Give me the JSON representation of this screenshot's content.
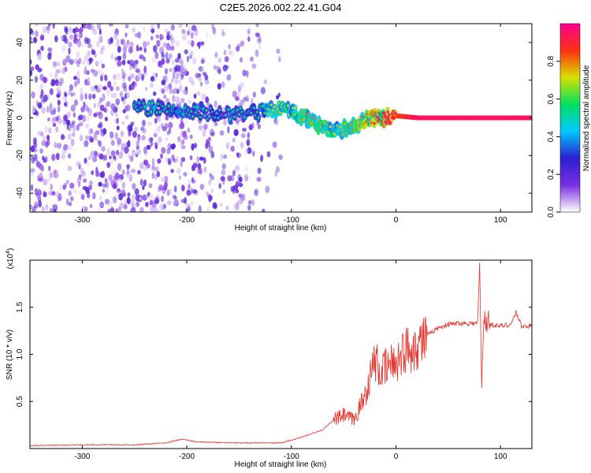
{
  "title": "C2E5.2026.002.22.41.G04",
  "chart_data": [
    {
      "type": "heatmap",
      "xlabel": "Height of straight line (km)",
      "ylabel": "Frequency (Hz)",
      "colorbar_label": "Normalized spectral amplitude",
      "xlim": [
        -350,
        130
      ],
      "ylim": [
        -50,
        50
      ],
      "x_ticks": [
        -300,
        -200,
        -100,
        0,
        100
      ],
      "x_tick_labels": [
        "-300",
        "-200",
        "-100",
        "0",
        "100"
      ],
      "y_ticks": [
        -40,
        -20,
        0,
        20,
        40
      ],
      "y_tick_labels": [
        "-40",
        "-20",
        "0",
        "20",
        "40"
      ],
      "colorbar_range": [
        0,
        1
      ],
      "colorbar_ticks": [
        0.0,
        0.2,
        0.4,
        0.6,
        0.8
      ],
      "colorbar_tick_labels": [
        "0.0",
        "0.2",
        "0.4",
        "0.6",
        "0.8"
      ],
      "colormap": [
        "#ffffff",
        "#7a2fe0",
        "#2a1fd0",
        "#00c8ff",
        "#00e060",
        "#d8e000",
        "#ff3010",
        "#ff0090"
      ],
      "centroid_track": {
        "x": [
          -250,
          -230,
          -210,
          -190,
          -170,
          -150,
          -130,
          -115,
          -100,
          -90,
          -80,
          -70,
          -60,
          -50,
          -40,
          -30,
          -20,
          -10,
          0,
          20,
          60,
          100,
          130
        ],
        "y": [
          5,
          5,
          4,
          3,
          2,
          2,
          3,
          5,
          4,
          1,
          -2,
          -5,
          -7,
          -6,
          -4,
          -1,
          0,
          0,
          1,
          0,
          0,
          0,
          0
        ],
        "amplitude": [
          0.3,
          0.35,
          0.3,
          0.3,
          0.25,
          0.3,
          0.3,
          0.5,
          0.45,
          0.5,
          0.55,
          0.5,
          0.45,
          0.5,
          0.55,
          0.6,
          0.7,
          0.8,
          0.85,
          0.95,
          0.95,
          0.95,
          0.95
        ]
      }
    },
    {
      "type": "line",
      "xlabel": "Height of straight line (km)",
      "ylabel": "SNR (10 * v/v)",
      "exponent_label": "(x10",
      "exponent_power": "4",
      "exponent_close": ")",
      "xlim": [
        -350,
        130
      ],
      "ylim": [
        0,
        2.0
      ],
      "x_ticks": [
        -300,
        -200,
        -100,
        0,
        100
      ],
      "x_tick_labels": [
        "-300",
        "-200",
        "-100",
        "0",
        "100"
      ],
      "y_ticks": [
        0.5,
        1.0,
        1.5
      ],
      "y_tick_labels": [
        "0.5",
        "1.0",
        "1.5"
      ],
      "color": "#e8322c",
      "series": [
        {
          "x": [
            -350,
            -300,
            -250,
            -220,
            -205,
            -190,
            -150,
            -110,
            -90,
            -70,
            -60,
            -50,
            -40,
            -30,
            -25,
            -20,
            -15,
            -10,
            -5,
            0,
            5,
            10,
            20,
            30,
            40,
            50,
            60,
            70,
            78,
            80,
            82,
            84,
            90,
            100,
            110,
            115,
            120,
            130
          ],
          "y": [
            0.03,
            0.04,
            0.04,
            0.06,
            0.1,
            0.07,
            0.06,
            0.06,
            0.12,
            0.2,
            0.3,
            0.35,
            0.3,
            0.55,
            0.75,
            0.95,
            0.8,
            0.85,
            0.9,
            0.92,
            1.0,
            1.05,
            1.1,
            1.2,
            1.28,
            1.32,
            1.33,
            1.33,
            1.33,
            1.95,
            0.65,
            1.4,
            1.32,
            1.3,
            1.32,
            1.45,
            1.3,
            1.3
          ]
        }
      ]
    }
  ]
}
